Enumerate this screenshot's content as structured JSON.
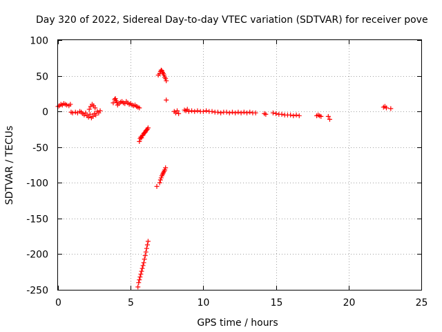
{
  "chart_data": {
    "type": "scatter",
    "title": "Day 320 of 2022, Sidereal Day-to-day VTEC variation (SDTVAR) for receiver pove",
    "xlabel": "GPS time / hours",
    "ylabel": "SDTVAR / TECUs",
    "xlim": [
      0,
      25
    ],
    "ylim": [
      -250,
      100
    ],
    "xticks": [
      0,
      5,
      10,
      15,
      20,
      25
    ],
    "yticks": [
      100,
      50,
      0,
      -50,
      -100,
      -150,
      -200,
      -250
    ],
    "xtick_labels": [
      "0",
      "5",
      "10",
      "15",
      "20",
      "25"
    ],
    "ytick_labels": [
      "100",
      "50",
      "0",
      "-50",
      "-100",
      "-150",
      "-200",
      "-250"
    ],
    "grid": true,
    "marker": "+",
    "color": "#ff0000",
    "series": [
      {
        "name": "SDTVAR",
        "points": [
          [
            0.0,
            7
          ],
          [
            0.1,
            8
          ],
          [
            0.2,
            10
          ],
          [
            0.3,
            9
          ],
          [
            0.4,
            11
          ],
          [
            0.5,
            10
          ],
          [
            0.6,
            9
          ],
          [
            0.75,
            8
          ],
          [
            0.85,
            10
          ],
          [
            0.9,
            -1
          ],
          [
            1.0,
            -2
          ],
          [
            1.2,
            -1
          ],
          [
            1.35,
            -2
          ],
          [
            1.5,
            0
          ],
          [
            1.6,
            -1
          ],
          [
            1.7,
            -3
          ],
          [
            1.8,
            -5
          ],
          [
            1.9,
            -2
          ],
          [
            2.0,
            -6
          ],
          [
            2.1,
            -8
          ],
          [
            2.15,
            3
          ],
          [
            2.2,
            -4
          ],
          [
            2.25,
            7
          ],
          [
            2.3,
            -9
          ],
          [
            2.35,
            10
          ],
          [
            2.4,
            -7
          ],
          [
            2.45,
            8
          ],
          [
            2.5,
            -3
          ],
          [
            2.55,
            5
          ],
          [
            2.6,
            -5
          ],
          [
            2.7,
            0
          ],
          [
            2.8,
            -2
          ],
          [
            2.9,
            1
          ],
          [
            3.8,
            12
          ],
          [
            3.9,
            17
          ],
          [
            3.95,
            18
          ],
          [
            4.0,
            15
          ],
          [
            4.05,
            13
          ],
          [
            4.1,
            9
          ],
          [
            4.2,
            11
          ],
          [
            4.3,
            13
          ],
          [
            4.4,
            14
          ],
          [
            4.5,
            12
          ],
          [
            4.6,
            11
          ],
          [
            4.7,
            14
          ],
          [
            4.8,
            12
          ],
          [
            4.9,
            10
          ],
          [
            5.0,
            11
          ],
          [
            5.1,
            9
          ],
          [
            5.2,
            8
          ],
          [
            5.3,
            9
          ],
          [
            5.4,
            7
          ],
          [
            5.5,
            6
          ],
          [
            5.6,
            5
          ],
          [
            5.6,
            -42
          ],
          [
            5.65,
            -38
          ],
          [
            5.7,
            -36
          ],
          [
            5.75,
            -37
          ],
          [
            5.8,
            -34
          ],
          [
            5.85,
            -33
          ],
          [
            5.9,
            -31
          ],
          [
            5.95,
            -30
          ],
          [
            6.0,
            -29
          ],
          [
            6.05,
            -27
          ],
          [
            6.1,
            -26
          ],
          [
            6.15,
            -25
          ],
          [
            6.2,
            -23
          ],
          [
            5.5,
            -246
          ],
          [
            5.55,
            -240
          ],
          [
            5.6,
            -236
          ],
          [
            5.65,
            -232
          ],
          [
            5.7,
            -228
          ],
          [
            5.75,
            -224
          ],
          [
            5.8,
            -220
          ],
          [
            5.85,
            -216
          ],
          [
            5.9,
            -212
          ],
          [
            5.95,
            -207
          ],
          [
            6.0,
            -202
          ],
          [
            6.05,
            -197
          ],
          [
            6.1,
            -192
          ],
          [
            6.15,
            -187
          ],
          [
            6.2,
            -182
          ],
          [
            6.8,
            -105
          ],
          [
            7.0,
            -100
          ],
          [
            7.05,
            -96
          ],
          [
            7.1,
            -93
          ],
          [
            7.15,
            -90
          ],
          [
            7.2,
            -88
          ],
          [
            7.25,
            -86
          ],
          [
            7.3,
            -84
          ],
          [
            7.35,
            -82
          ],
          [
            7.4,
            -79
          ],
          [
            6.9,
            51
          ],
          [
            7.0,
            53
          ],
          [
            7.05,
            56
          ],
          [
            7.1,
            58
          ],
          [
            7.15,
            57
          ],
          [
            7.2,
            55
          ],
          [
            7.25,
            53
          ],
          [
            7.3,
            51
          ],
          [
            7.35,
            48
          ],
          [
            7.4,
            46
          ],
          [
            7.45,
            43
          ],
          [
            7.45,
            16
          ],
          [
            8.0,
            0
          ],
          [
            8.1,
            -2
          ],
          [
            8.2,
            1
          ],
          [
            8.3,
            -3
          ],
          [
            8.7,
            2
          ],
          [
            8.8,
            1
          ],
          [
            8.9,
            3
          ],
          [
            9.0,
            0
          ],
          [
            9.2,
            1
          ],
          [
            9.4,
            0
          ],
          [
            9.6,
            1
          ],
          [
            9.8,
            0
          ],
          [
            10.0,
            0
          ],
          [
            10.2,
            1
          ],
          [
            10.4,
            0
          ],
          [
            10.6,
            0
          ],
          [
            10.8,
            -1
          ],
          [
            11.0,
            -1
          ],
          [
            11.2,
            -2
          ],
          [
            11.4,
            -1
          ],
          [
            11.6,
            -1
          ],
          [
            11.8,
            -2
          ],
          [
            12.0,
            -1
          ],
          [
            12.2,
            -2
          ],
          [
            12.4,
            -1
          ],
          [
            12.6,
            -2
          ],
          [
            12.8,
            -1
          ],
          [
            13.0,
            -2
          ],
          [
            13.2,
            -1
          ],
          [
            13.4,
            -2
          ],
          [
            13.6,
            -2
          ],
          [
            14.2,
            -3
          ],
          [
            14.3,
            -4
          ],
          [
            14.8,
            -2
          ],
          [
            15.0,
            -3
          ],
          [
            15.2,
            -4
          ],
          [
            15.4,
            -4
          ],
          [
            15.6,
            -5
          ],
          [
            15.8,
            -5
          ],
          [
            16.0,
            -5
          ],
          [
            16.2,
            -6
          ],
          [
            16.4,
            -5
          ],
          [
            16.6,
            -6
          ],
          [
            17.8,
            -6
          ],
          [
            17.9,
            -5
          ],
          [
            18.0,
            -6
          ],
          [
            18.1,
            -7
          ],
          [
            18.6,
            -7
          ],
          [
            18.7,
            -11
          ],
          [
            22.4,
            6
          ],
          [
            22.5,
            7
          ],
          [
            22.6,
            5
          ],
          [
            22.9,
            4
          ]
        ]
      }
    ]
  }
}
